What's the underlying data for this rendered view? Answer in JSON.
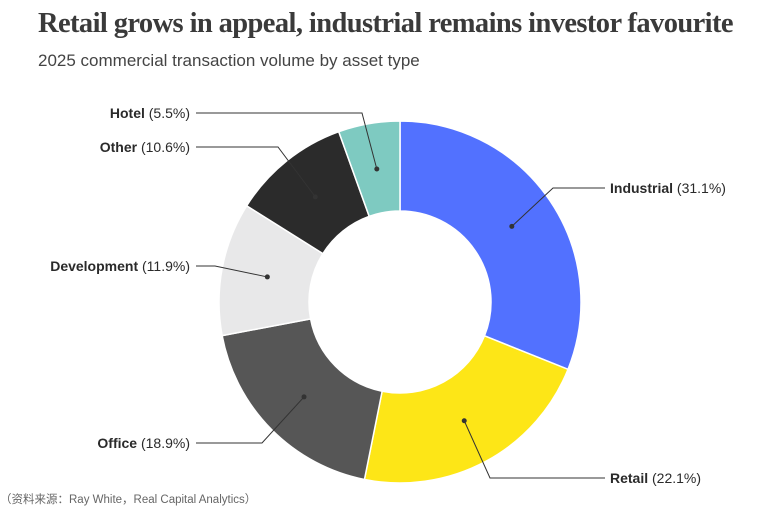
{
  "chart_data": {
    "type": "pie",
    "donut": true,
    "title": "Retail grows in appeal, industrial remains investor favourite",
    "subtitle": "2025 commercial transaction volume by asset type",
    "source": "（资料来源：Ray White，Real Capital Analytics）",
    "slices": [
      {
        "name": "Industrial",
        "value": 31.1,
        "label": "(31.1%)",
        "color": "#5271ff"
      },
      {
        "name": "Retail",
        "value": 22.1,
        "label": "(22.1%)",
        "color": "#fde617"
      },
      {
        "name": "Office",
        "value": 18.9,
        "label": "(18.9%)",
        "color": "#565656"
      },
      {
        "name": "Development",
        "value": 11.9,
        "label": "(11.9%)",
        "color": "#e8e8e9"
      },
      {
        "name": "Other",
        "value": 10.6,
        "label": "(10.6%)",
        "color": "#2b2b2b"
      },
      {
        "name": "Hotel",
        "value": 5.5,
        "label": "(5.5%)",
        "color": "#7ecac1"
      }
    ],
    "start_angle": "top",
    "direction": "clockwise",
    "legend": "none"
  }
}
